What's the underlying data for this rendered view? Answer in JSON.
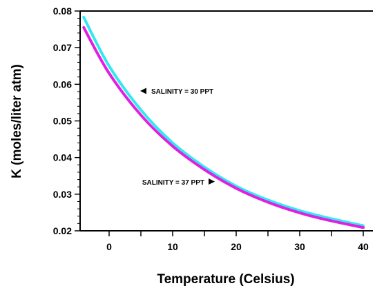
{
  "chart_data": {
    "type": "line",
    "title": "",
    "xlabel": "Temperature (Celsius)",
    "ylabel": "K (moles/liter atm)",
    "xlim": [
      -4,
      40
    ],
    "ylim": [
      0.02,
      0.08
    ],
    "x_ticks": [
      0,
      10,
      20,
      30,
      40
    ],
    "x_tick_labels": [
      "0",
      "10",
      "20",
      "30",
      "40"
    ],
    "y_ticks": [
      0.02,
      0.03,
      0.04,
      0.05,
      0.06,
      0.07,
      0.08
    ],
    "y_tick_labels": [
      "0.02",
      "0.03",
      "0.04",
      "0.05",
      "0.06",
      "0.07",
      "0.08"
    ],
    "grid": false,
    "legend": "none",
    "series": [
      {
        "name": "SALINITY = 30 PPT",
        "color": "#33e8f0",
        "x": [
          -4,
          0,
          5,
          10,
          15,
          20,
          25,
          30,
          35,
          40
        ],
        "y": [
          0.0783,
          0.065,
          0.053,
          0.044,
          0.0374,
          0.0322,
          0.0284,
          0.0255,
          0.0233,
          0.0214
        ]
      },
      {
        "name": "SALINITY = 37 PPT",
        "color": "#e020e0",
        "x": [
          -4,
          0,
          5,
          10,
          15,
          20,
          25,
          30,
          35,
          40
        ],
        "y": [
          0.0755,
          0.063,
          0.0516,
          0.0431,
          0.0367,
          0.0316,
          0.0278,
          0.0249,
          0.0227,
          0.0209
        ]
      }
    ],
    "annotations": [
      {
        "text": "SALINITY = 30 PPT",
        "arrow": "left",
        "series": "SALINITY = 30 PPT"
      },
      {
        "text": "SALINITY = 37 PPT",
        "arrow": "right",
        "series": "SALINITY = 37 PPT"
      }
    ]
  }
}
